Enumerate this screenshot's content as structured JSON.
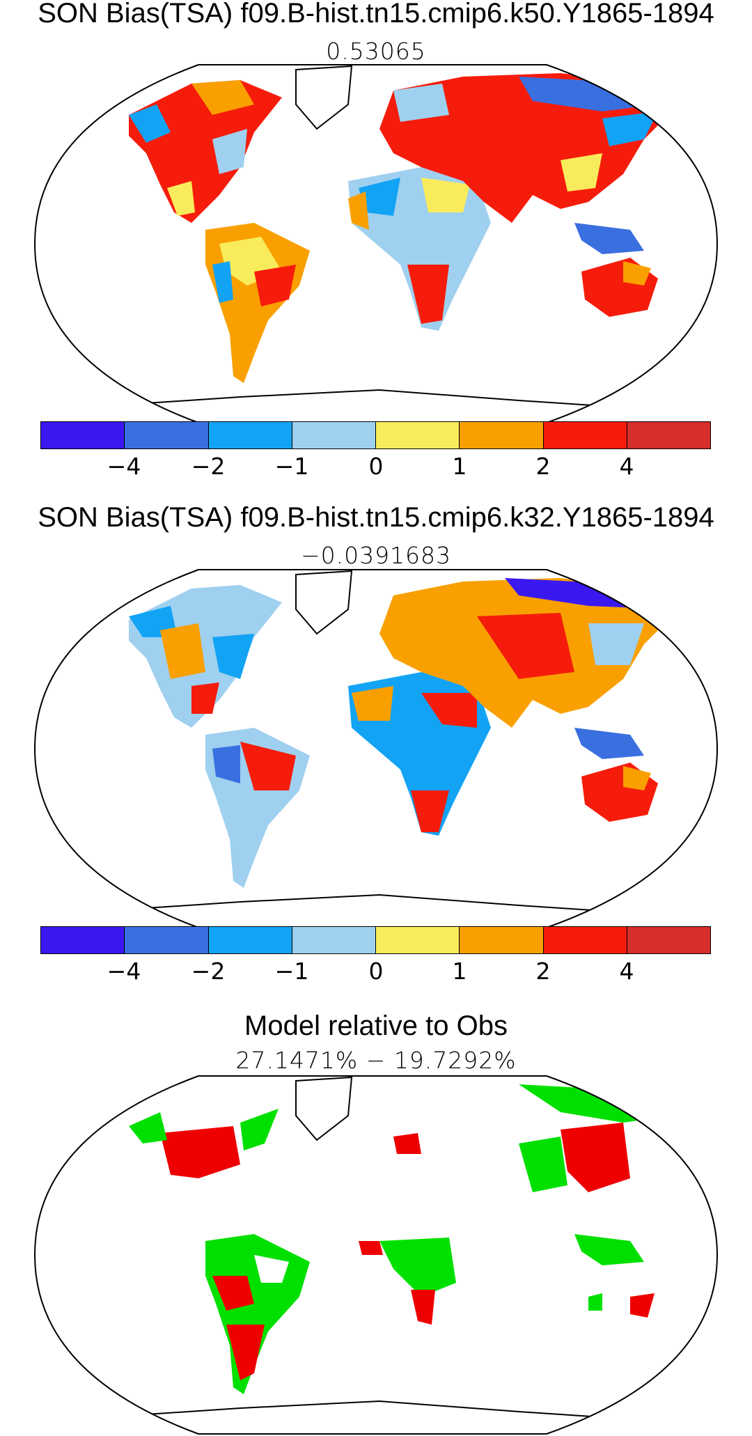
{
  "panel1": {
    "title": "SON Bias(TSA) f09.B-hist.tn15.cmip6.k50.Y1865-1894",
    "value": "0.53065"
  },
  "panel2": {
    "title": "SON Bias(TSA) f09.B-hist.tn15.cmip6.k32.Y1865-1894",
    "value": "−0.0391683"
  },
  "panel3": {
    "title": "Model relative to Obs",
    "value": "27.1471% − 19.7292%"
  },
  "colorbar": {
    "colors": [
      "#3a18f0",
      "#3a6fe0",
      "#12a3f5",
      "#9fd0ef",
      "#f9ec5c",
      "#f9a000",
      "#f61c0b",
      "#d62d2d"
    ],
    "ticks": [
      "−4",
      "−2",
      "−1",
      "0",
      "1",
      "2",
      "4"
    ]
  }
}
